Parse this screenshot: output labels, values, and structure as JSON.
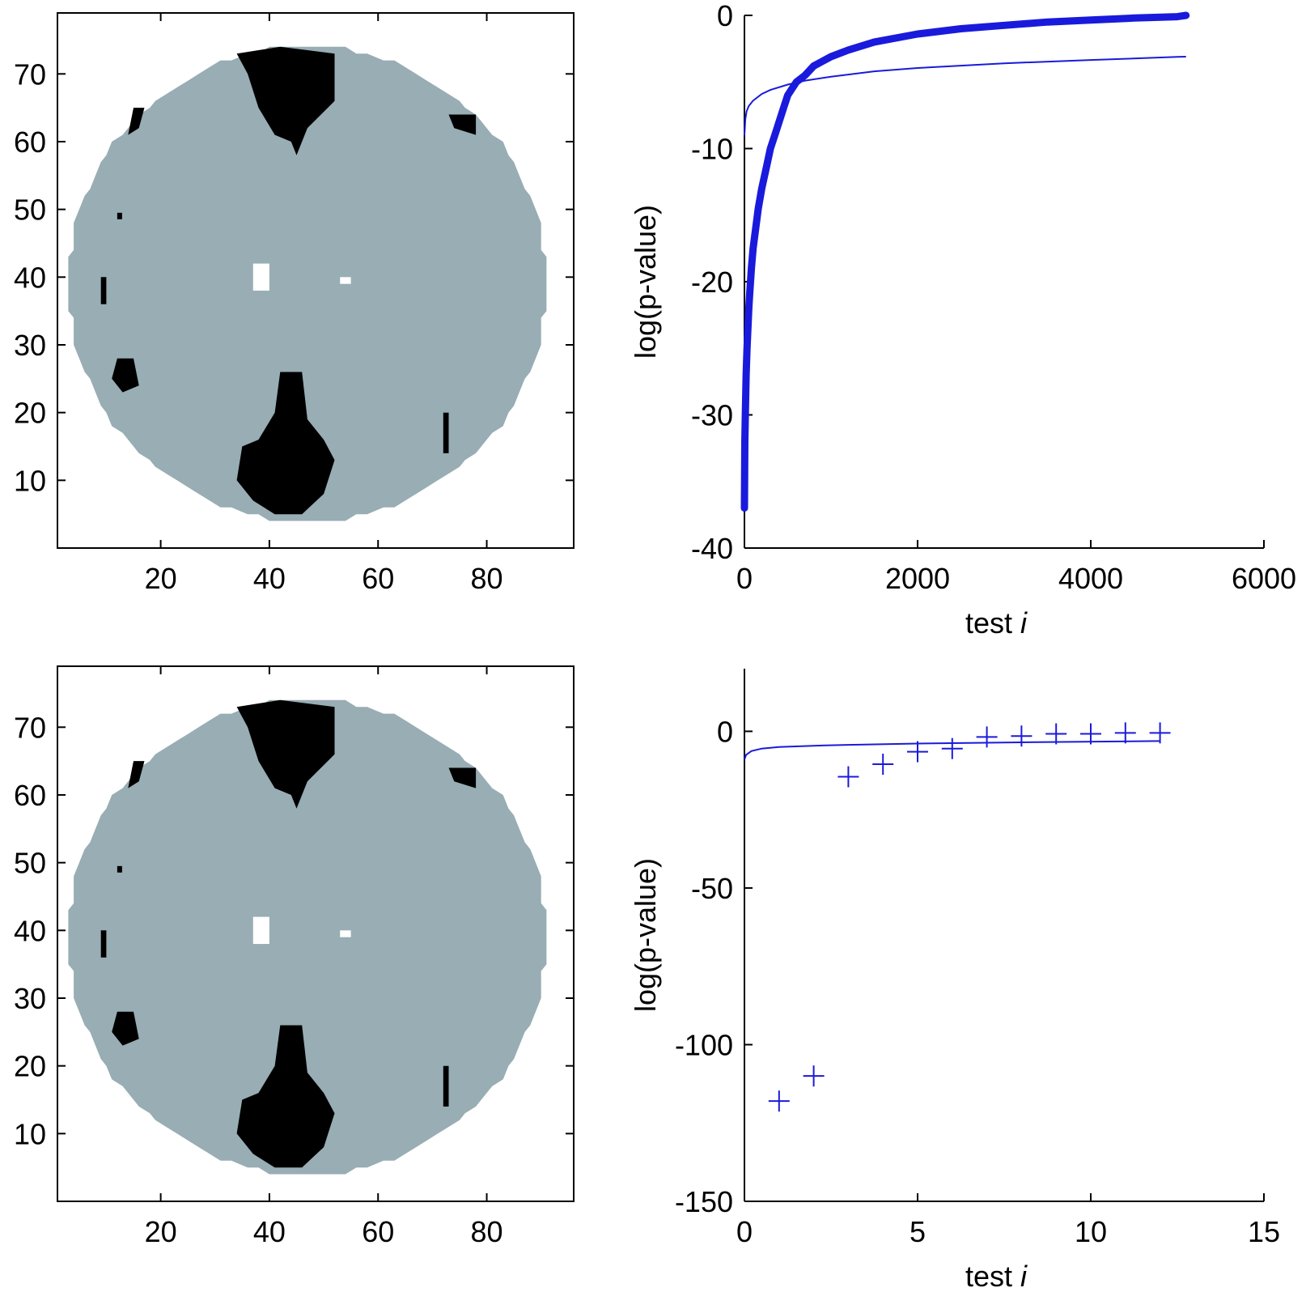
{
  "colors": {
    "region_fill": "#98adb4",
    "cluster_fill": "#000000",
    "series": "#1a1adc",
    "axis": "#000000"
  },
  "chart_data": [
    {
      "id": "map-top",
      "type": "heatmap",
      "x_ticks": [
        20,
        40,
        60,
        80
      ],
      "y_ticks": [
        10,
        20,
        30,
        40,
        50,
        60,
        70
      ],
      "xlim": [
        1,
        96
      ],
      "ylim": [
        0,
        79
      ],
      "grid": false,
      "classes": [
        "gray region",
        "black clusters",
        "white holes"
      ]
    },
    {
      "id": "plot-top",
      "type": "line",
      "xlabel_prefix": "test ",
      "xlabel_var": "i",
      "ylabel": "log(p-value)",
      "xlim": [
        0,
        6000
      ],
      "ylim": [
        -40,
        0
      ],
      "x_ticks": [
        0,
        2000,
        4000,
        6000
      ],
      "y_ticks": [
        0,
        -10,
        -20,
        -30,
        -40
      ],
      "grid": false,
      "series": [
        {
          "style": "thick dots",
          "x": [
            0,
            2,
            5,
            10,
            15,
            20,
            30,
            40,
            50,
            60,
            80,
            100,
            130,
            160,
            200,
            250,
            300,
            350,
            400,
            450,
            500,
            600,
            700,
            800,
            1000,
            1200,
            1500,
            2000,
            2500,
            3000,
            3500,
            4000,
            4500,
            5000,
            5100
          ],
          "y": [
            -37,
            -35,
            -32,
            -30,
            -28.5,
            -27,
            -25,
            -23.5,
            -22,
            -21,
            -19,
            -17.5,
            -16,
            -14.5,
            -13,
            -11.5,
            -10,
            -9,
            -8,
            -7,
            -6,
            -5,
            -4.5,
            -3.8,
            -3.1,
            -2.6,
            -2.0,
            -1.4,
            -1.0,
            -0.75,
            -0.5,
            -0.35,
            -0.2,
            -0.1,
            0
          ]
        },
        {
          "style": "thin line",
          "x": [
            0,
            10,
            25,
            50,
            100,
            200,
            300,
            500,
            700,
            1000,
            1500,
            2000,
            3000,
            4000,
            5000,
            5100
          ],
          "y": [
            -9,
            -7.8,
            -7.2,
            -6.8,
            -6.4,
            -5.9,
            -5.6,
            -5.2,
            -4.9,
            -4.6,
            -4.2,
            -3.95,
            -3.6,
            -3.35,
            -3.12,
            -3.1
          ]
        }
      ]
    },
    {
      "id": "map-bottom",
      "type": "heatmap",
      "x_ticks": [
        20,
        40,
        60,
        80
      ],
      "y_ticks": [
        10,
        20,
        30,
        40,
        50,
        60,
        70
      ],
      "xlim": [
        1,
        96
      ],
      "ylim": [
        0,
        79
      ],
      "grid": false,
      "classes": [
        "gray region",
        "black clusters",
        "white holes"
      ]
    },
    {
      "id": "plot-bottom",
      "type": "scatter",
      "xlabel_prefix": "test ",
      "xlabel_var": "i",
      "ylabel": "log(p-value)",
      "xlim": [
        0,
        15
      ],
      "ylim": [
        -150,
        20
      ],
      "x_ticks": [
        0,
        5,
        10,
        15
      ],
      "y_ticks": [
        0,
        -50,
        -100,
        -150
      ],
      "grid": false,
      "series": [
        {
          "style": "plus markers",
          "x": [
            1,
            2,
            3,
            4,
            5,
            6,
            7,
            8,
            9,
            10,
            11,
            12
          ],
          "y": [
            -118,
            -110,
            -14.5,
            -10.5,
            -6.5,
            -5.5,
            -1.8,
            -1.5,
            -0.8,
            -0.8,
            -0.5,
            -0.5
          ]
        },
        {
          "style": "thin line",
          "x": [
            0,
            0.05,
            0.2,
            0.5,
            1,
            2,
            3,
            5,
            8,
            12
          ],
          "y": [
            -9,
            -7.5,
            -6.3,
            -5.5,
            -5,
            -4.6,
            -4.3,
            -3.9,
            -3.5,
            -3.1
          ]
        }
      ]
    }
  ]
}
